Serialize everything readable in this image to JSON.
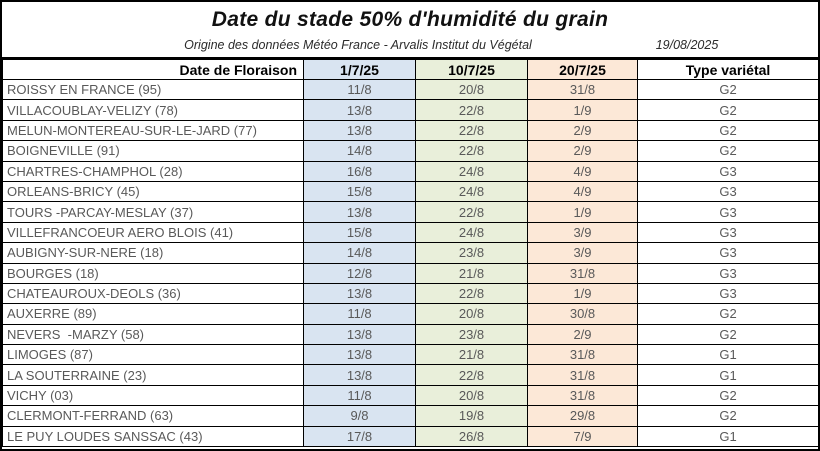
{
  "title": "Date du stade 50% d'humidité du grain",
  "subtitle": "Origine des données Météo France - Arvalis Institut du Végétal",
  "report_date": "19/08/2025",
  "accent_colors": {
    "column_1_7": "#d9e4f1",
    "column_10_7": "#e9efda",
    "column_20_7": "#fce8d7",
    "grid_border": "#000000",
    "data_text": "#595959"
  },
  "chart_data": {
    "type": "table",
    "title": "Date du stade 50% d'humidité du grain",
    "subtitle": "Origine des données Météo France - Arvalis Institut du Végétal",
    "date_label": "19/08/2025",
    "columns": [
      "Date de Floraison",
      "1/7/25",
      "10/7/25",
      "20/7/25",
      "Type variétal"
    ],
    "rows": [
      [
        "ROISSY EN FRANCE (95)",
        "11/8",
        "20/8",
        "31/8",
        "G2"
      ],
      [
        "VILLACOUBLAY-VELIZY (78)",
        "13/8",
        "22/8",
        "1/9",
        "G2"
      ],
      [
        "MELUN-MONTEREAU-SUR-LE-JARD (77)",
        "13/8",
        "22/8",
        "2/9",
        "G2"
      ],
      [
        "BOIGNEVILLE (91)",
        "14/8",
        "22/8",
        "2/9",
        "G2"
      ],
      [
        "CHARTRES-CHAMPHOL (28)",
        "16/8",
        "24/8",
        "4/9",
        "G3"
      ],
      [
        "ORLEANS-BRICY (45)",
        "15/8",
        "24/8",
        "4/9",
        "G3"
      ],
      [
        "TOURS -PARCAY-MESLAY (37)",
        "13/8",
        "22/8",
        "1/9",
        "G3"
      ],
      [
        "VILLEFRANCOEUR AERO BLOIS (41)",
        "15/8",
        "24/8",
        "3/9",
        "G3"
      ],
      [
        "AUBIGNY-SUR-NERE (18)",
        "14/8",
        "23/8",
        "3/9",
        "G3"
      ],
      [
        "BOURGES (18)",
        "12/8",
        "21/8",
        "31/8",
        "G3"
      ],
      [
        "CHATEAUROUX-DEOLS (36)",
        "13/8",
        "22/8",
        "1/9",
        "G3"
      ],
      [
        "AUXERRE (89)",
        "11/8",
        "20/8",
        "30/8",
        "G2"
      ],
      [
        "NEVERS  -MARZY (58)",
        "13/8",
        "23/8",
        "2/9",
        "G2"
      ],
      [
        "LIMOGES (87)",
        "13/8",
        "21/8",
        "31/8",
        "G1"
      ],
      [
        "LA SOUTERRAINE (23)",
        "13/8",
        "22/8",
        "31/8",
        "G1"
      ],
      [
        "VICHY (03)",
        "11/8",
        "20/8",
        "31/8",
        "G2"
      ],
      [
        "CLERMONT-FERRAND (63)",
        "9/8",
        "19/8",
        "29/8",
        "G2"
      ],
      [
        "LE PUY LOUDES SANSSAC (43)",
        "17/8",
        "26/8",
        "7/9",
        "G1"
      ]
    ]
  }
}
